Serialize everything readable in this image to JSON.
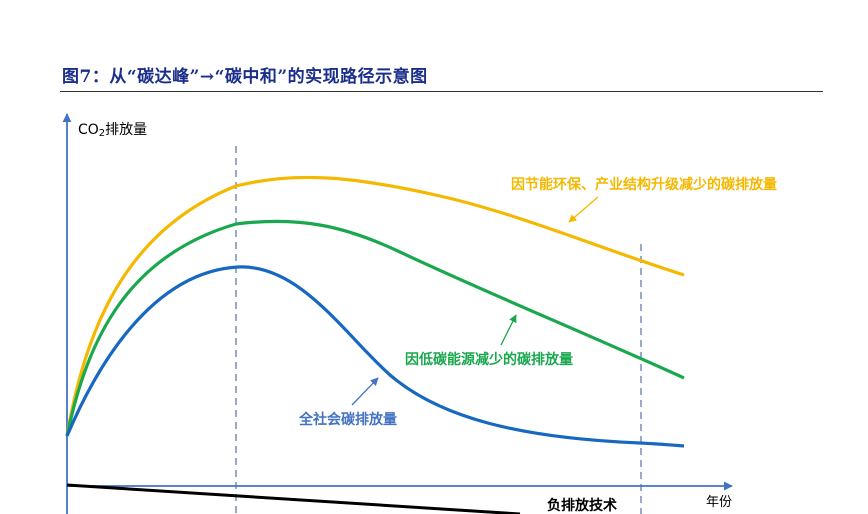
{
  "figure": {
    "title": "图7：从“碳达峰”→“碳中和”的实现路径示意图"
  },
  "axes": {
    "y_label_prefix": "CO",
    "y_label_subscript": "2",
    "y_label_suffix": "排放量",
    "x_label": "年份"
  },
  "curves": {
    "industrial": {
      "label": "因节能环保、产业结构升级减少的碳排放量",
      "color": "#f5b800"
    },
    "energy": {
      "label": "因低碳能源减少的碳排放量",
      "color": "#1aa84f"
    },
    "total": {
      "label": "全社会碳排放量",
      "color": "#1668c0"
    },
    "negative": {
      "label": "负排放技术",
      "color": "#000000"
    }
  },
  "colors": {
    "axis": "#4472c4",
    "guide_line": "#2f5597"
  }
}
